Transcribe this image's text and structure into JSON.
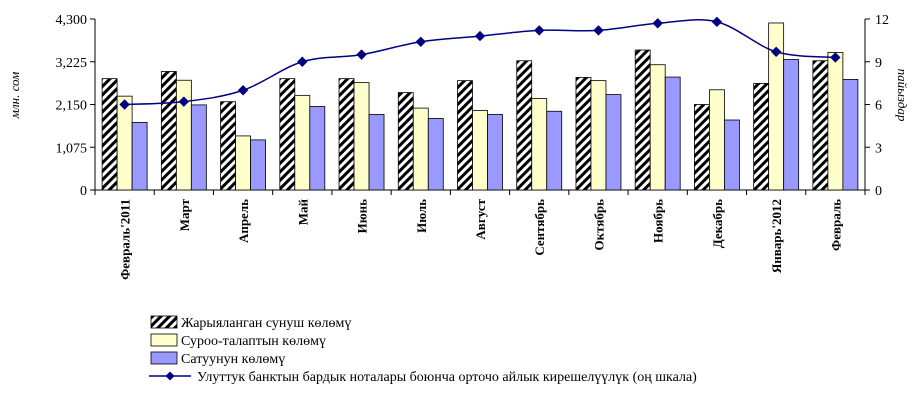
{
  "chart_data": {
    "type": "bar",
    "categories": [
      "Февраль'2011",
      "Март",
      "Апрель",
      "Май",
      "Июнь",
      "Июль",
      "Август",
      "Сентябрь",
      "Октябрь",
      "Ноябрь",
      "Декабрь",
      "Январь'2012",
      "Февраль"
    ],
    "series": [
      {
        "name": "Жарыяланган сунуш көлөмү",
        "type": "bar",
        "axis": "left",
        "color": "#000000",
        "pattern": "diagonal-hatch",
        "values": [
          2800,
          2980,
          2220,
          2800,
          2800,
          2450,
          2750,
          3250,
          2830,
          3520,
          2150,
          2680,
          3250
        ]
      },
      {
        "name": "Суроо-талаптын көлөмү",
        "type": "bar",
        "axis": "left",
        "color": "#FFFFCC",
        "values": [
          2360,
          2760,
          1360,
          2380,
          2700,
          2060,
          2000,
          2300,
          2750,
          3150,
          2520,
          4200,
          3460
        ]
      },
      {
        "name": "Сатуунун көлөмү",
        "type": "bar",
        "axis": "left",
        "color": "#9999FF",
        "values": [
          1700,
          2140,
          1260,
          2100,
          1900,
          1800,
          1900,
          1980,
          2400,
          2840,
          1760,
          3280,
          2780
        ]
      },
      {
        "name": "Улуттук банктын бардык ноталары боюнча орточо айлык кирешелүүлүк (оң шкала)",
        "type": "line",
        "axis": "right",
        "color": "#000080",
        "values": [
          6.0,
          6.2,
          7.0,
          9.0,
          9.5,
          10.4,
          10.8,
          11.2,
          11.2,
          11.7,
          11.8,
          9.7,
          9.3
        ]
      }
    ],
    "y_left": {
      "label": "млн. сом",
      "min": 0,
      "max": 4300,
      "ticks": [
        "0",
        "1,075",
        "2,150",
        "3,225",
        "4,300"
      ]
    },
    "y_right": {
      "label": "пайыздар",
      "min": 0,
      "max": 12,
      "ticks": [
        "0",
        "3",
        "6",
        "9",
        "12"
      ]
    },
    "grid": false,
    "legend_position": "bottom-left"
  }
}
